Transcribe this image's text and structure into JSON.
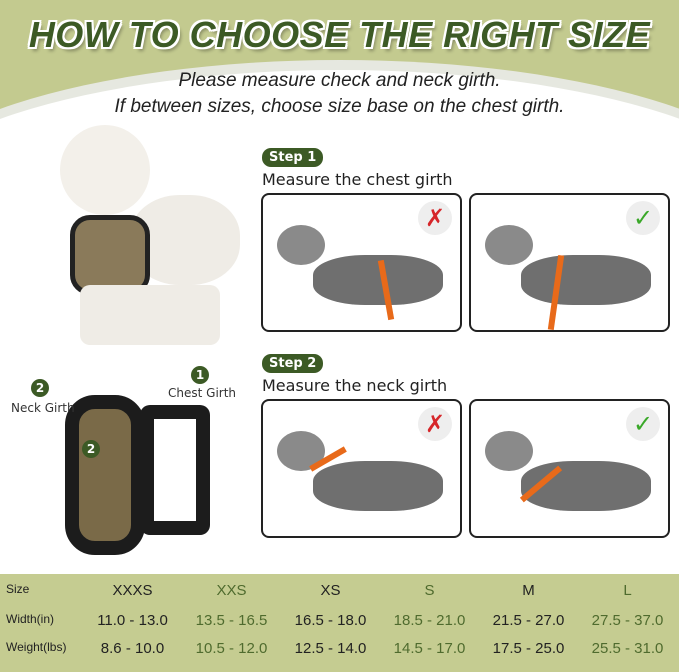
{
  "header": {
    "title": "HOW TO CHOOSE THE RIGHT SIZE",
    "line1": "Please measure check and neck girth.",
    "line2": "If between sizes, choose size base on the chest girth."
  },
  "step1": {
    "badge": "Step 1",
    "label": "Measure the chest girth"
  },
  "step2": {
    "badge": "Step 2",
    "label": "Measure the neck girth"
  },
  "harness": {
    "neck_badge": "2",
    "neck_label": "Neck Girth",
    "chest_badge": "1",
    "chest_label": "Chest Girth",
    "inner_badge": "2"
  },
  "marks": {
    "wrong": "✗",
    "right": "✓",
    "wrong_color": "#d6262a",
    "right_color": "#3aa829"
  },
  "colors": {
    "accent": "#3c5a25",
    "table_bg": "#c5cc91",
    "strap": "#e86a1a"
  },
  "size_table": {
    "rows": [
      {
        "label": "Size",
        "values": [
          "XXXS",
          "XXS",
          "XS",
          "S",
          "M",
          "L"
        ]
      },
      {
        "label": "Width(in)",
        "values": [
          "11.0 - 13.0",
          "13.5 - 16.5",
          "16.5 - 18.0",
          "18.5 - 21.0",
          "21.5 - 27.0",
          "27.5 - 37.0"
        ]
      },
      {
        "label": "Weight(lbs)",
        "values": [
          "8.6 - 10.0",
          "10.5 - 12.0",
          "12.5 - 14.0",
          "14.5 - 17.0",
          "17.5 - 25.0",
          "25.5 - 31.0"
        ]
      }
    ]
  }
}
